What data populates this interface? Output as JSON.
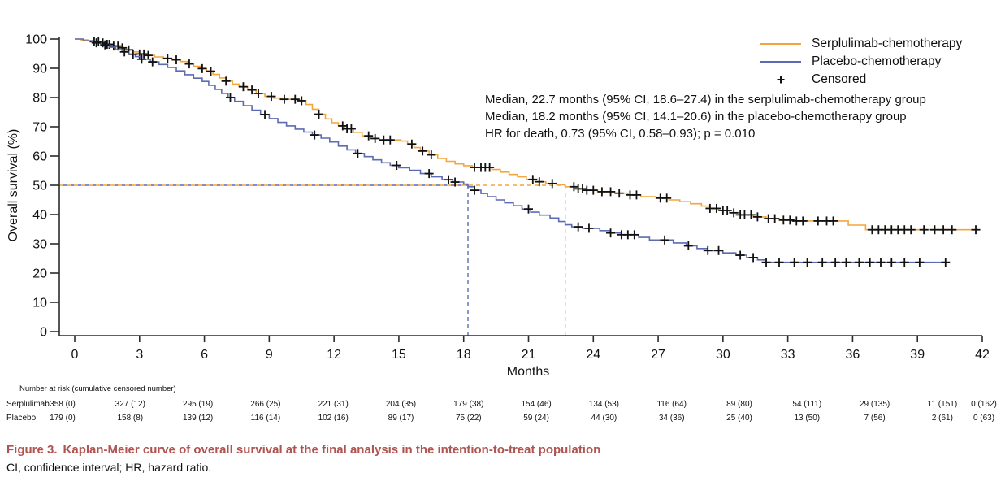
{
  "legend": {
    "items": [
      {
        "label": "Serplulimab-chemotherapy",
        "color": "#F2A63F",
        "type": "line"
      },
      {
        "label": "Placebo-chemotherapy",
        "color": "#5C6BB2",
        "type": "line"
      },
      {
        "label": "Censored",
        "symbol": "+",
        "type": "marker"
      }
    ]
  },
  "annotation": {
    "lines": [
      "Median, 22.7 months (95% CI, 18.6–27.4) in the serplulimab-chemotherapy group",
      "Median, 18.2 months (95% CI, 14.1–20.6) in the placebo-chemotherapy group",
      "HR for death, 0.73 (95% CI, 0.58–0.93); p = 0.010"
    ]
  },
  "caption": {
    "figure_label": "Figure 3.",
    "title": "Kaplan-Meier curve of overall survival at the final analysis in the intention-to-treat population",
    "title_color": "#B0544F",
    "abbreviations": "CI, confidence interval; HR, hazard ratio."
  },
  "chart_data": {
    "type": "line",
    "subtype": "kaplan-meier-step",
    "xlabel": "Months",
    "ylabel": "Overall survival (%)",
    "xlim": [
      0,
      42
    ],
    "ylim": [
      0,
      100
    ],
    "x_ticks": [
      0,
      3,
      6,
      9,
      12,
      15,
      18,
      21,
      24,
      27,
      30,
      33,
      36,
      39,
      42
    ],
    "y_ticks": [
      0,
      10,
      20,
      30,
      40,
      50,
      60,
      70,
      80,
      90,
      100
    ],
    "grid": false,
    "legend_position": "top-right",
    "median_reference": {
      "survival_pct": 50,
      "serplulimab_months": 22.7,
      "placebo_months": 18.2
    },
    "series": [
      {
        "name": "Serplulimab-chemotherapy",
        "color": "#F2A63F",
        "median_months": 22.7,
        "end_month": 41.8,
        "steps": [
          [
            0,
            100
          ],
          [
            0.3,
            99.7
          ],
          [
            0.6,
            99.4
          ],
          [
            0.9,
            99.1
          ],
          [
            1.2,
            98.7
          ],
          [
            1.5,
            98.2
          ],
          [
            1.8,
            97.6
          ],
          [
            2.1,
            97.0
          ],
          [
            2.4,
            96.3
          ],
          [
            2.7,
            95.6
          ],
          [
            3.0,
            94.9
          ],
          [
            3.3,
            94.4
          ],
          [
            3.7,
            93.9
          ],
          [
            4.1,
            93.4
          ],
          [
            4.5,
            92.9
          ],
          [
            4.9,
            92.3
          ],
          [
            5.2,
            91.5
          ],
          [
            5.5,
            90.7
          ],
          [
            5.8,
            89.9
          ],
          [
            6.1,
            89.0
          ],
          [
            6.4,
            87.9
          ],
          [
            6.7,
            86.7
          ],
          [
            7.0,
            85.6
          ],
          [
            7.3,
            84.6
          ],
          [
            7.6,
            83.7
          ],
          [
            8.0,
            82.6
          ],
          [
            8.4,
            81.4
          ],
          [
            8.8,
            80.4
          ],
          [
            9.2,
            79.8
          ],
          [
            9.6,
            79.4
          ],
          [
            10.4,
            78.9
          ],
          [
            10.7,
            77.6
          ],
          [
            11.0,
            76.0
          ],
          [
            11.3,
            74.3
          ],
          [
            11.6,
            72.7
          ],
          [
            11.9,
            71.4
          ],
          [
            12.2,
            70.3
          ],
          [
            12.5,
            69.3
          ],
          [
            12.9,
            68.1
          ],
          [
            13.3,
            66.9
          ],
          [
            13.7,
            66.0
          ],
          [
            14.1,
            65.5
          ],
          [
            15.1,
            65.1
          ],
          [
            15.4,
            64.1
          ],
          [
            15.7,
            62.9
          ],
          [
            16.0,
            61.7
          ],
          [
            16.4,
            60.4
          ],
          [
            16.8,
            59.2
          ],
          [
            17.2,
            58.2
          ],
          [
            17.6,
            57.3
          ],
          [
            18.0,
            56.7
          ],
          [
            18.4,
            56.1
          ],
          [
            19.3,
            55.4
          ],
          [
            19.7,
            54.5
          ],
          [
            20.1,
            53.7
          ],
          [
            20.5,
            52.9
          ],
          [
            20.9,
            52.0
          ],
          [
            21.3,
            51.2
          ],
          [
            21.8,
            50.6
          ],
          [
            22.3,
            50.2
          ],
          [
            22.7,
            49.5
          ],
          [
            23.2,
            48.8
          ],
          [
            23.6,
            48.3
          ],
          [
            24.2,
            47.8
          ],
          [
            25.0,
            47.3
          ],
          [
            25.6,
            46.7
          ],
          [
            26.2,
            46.1
          ],
          [
            26.9,
            45.6
          ],
          [
            27.5,
            45.0
          ],
          [
            28.0,
            44.4
          ],
          [
            28.5,
            43.7
          ],
          [
            29.0,
            42.9
          ],
          [
            29.4,
            42.1
          ],
          [
            29.8,
            41.4
          ],
          [
            30.3,
            40.6
          ],
          [
            30.8,
            39.9
          ],
          [
            31.4,
            39.2
          ],
          [
            32.0,
            38.6
          ],
          [
            32.6,
            38.1
          ],
          [
            33.2,
            37.8
          ],
          [
            35.8,
            36.4
          ],
          [
            36.6,
            34.8
          ]
        ],
        "censor_months": [
          0.9,
          1.1,
          1.3,
          1.5,
          1.6,
          1.8,
          2.0,
          2.2,
          2.5,
          3.0,
          3.2,
          3.4,
          4.3,
          4.7,
          5.3,
          5.9,
          6.3,
          7.0,
          7.8,
          8.2,
          8.5,
          9.1,
          9.7,
          10.2,
          10.5,
          11.3,
          12.4,
          12.6,
          12.8,
          13.6,
          13.9,
          14.3,
          14.6,
          15.6,
          16.1,
          16.5,
          18.5,
          18.8,
          19.0,
          19.2,
          21.2,
          21.5,
          22.1,
          23.1,
          23.3,
          23.5,
          23.7,
          24.0,
          24.4,
          24.8,
          25.2,
          25.7,
          26.0,
          27.1,
          27.4,
          29.4,
          29.7,
          30.0,
          30.2,
          30.5,
          30.8,
          31.0,
          31.3,
          31.6,
          32.1,
          32.4,
          32.8,
          33.1,
          33.4,
          33.7,
          34.4,
          34.8,
          35.1,
          36.9,
          37.2,
          37.5,
          37.8,
          38.1,
          38.4,
          38.7,
          39.3,
          39.8,
          40.2,
          40.6,
          41.7
        ]
      },
      {
        "name": "Placebo-chemotherapy",
        "color": "#5C6BB2",
        "median_months": 18.2,
        "end_month": 40.3,
        "steps": [
          [
            0,
            100
          ],
          [
            0.4,
            99.4
          ],
          [
            0.8,
            98.7
          ],
          [
            1.2,
            98.0
          ],
          [
            1.6,
            97.2
          ],
          [
            1.9,
            96.4
          ],
          [
            2.2,
            95.6
          ],
          [
            2.5,
            94.8
          ],
          [
            2.8,
            94.0
          ],
          [
            3.1,
            93.1
          ],
          [
            3.5,
            92.2
          ],
          [
            3.9,
            91.3
          ],
          [
            4.3,
            90.3
          ],
          [
            4.7,
            89.1
          ],
          [
            5.1,
            87.8
          ],
          [
            5.5,
            86.6
          ],
          [
            5.9,
            85.5
          ],
          [
            6.2,
            84.2
          ],
          [
            6.5,
            82.8
          ],
          [
            6.8,
            81.4
          ],
          [
            7.1,
            80.0
          ],
          [
            7.4,
            78.7
          ],
          [
            7.8,
            77.2
          ],
          [
            8.2,
            75.7
          ],
          [
            8.6,
            74.2
          ],
          [
            9.0,
            72.8
          ],
          [
            9.4,
            71.5
          ],
          [
            9.8,
            70.3
          ],
          [
            10.2,
            69.2
          ],
          [
            10.6,
            68.2
          ],
          [
            11.0,
            67.2
          ],
          [
            11.4,
            66.1
          ],
          [
            11.8,
            64.8
          ],
          [
            12.2,
            63.4
          ],
          [
            12.6,
            62.1
          ],
          [
            13.0,
            60.9
          ],
          [
            13.4,
            59.8
          ],
          [
            13.8,
            58.7
          ],
          [
            14.2,
            57.7
          ],
          [
            14.6,
            56.8
          ],
          [
            15.0,
            56.0
          ],
          [
            15.5,
            55.1
          ],
          [
            16.0,
            54.0
          ],
          [
            16.5,
            52.9
          ],
          [
            17.0,
            51.9
          ],
          [
            17.5,
            51.1
          ],
          [
            18.0,
            50.4
          ],
          [
            18.2,
            49.5
          ],
          [
            18.5,
            48.3
          ],
          [
            18.8,
            47.2
          ],
          [
            19.1,
            46.1
          ],
          [
            19.5,
            45.0
          ],
          [
            19.9,
            44.0
          ],
          [
            20.3,
            43.0
          ],
          [
            20.7,
            41.9
          ],
          [
            21.1,
            40.8
          ],
          [
            21.5,
            39.8
          ],
          [
            22.0,
            38.8
          ],
          [
            22.4,
            37.6
          ],
          [
            22.7,
            36.5
          ],
          [
            23.0,
            35.8
          ],
          [
            23.5,
            35.3
          ],
          [
            24.3,
            34.5
          ],
          [
            24.8,
            33.7
          ],
          [
            25.3,
            33.1
          ],
          [
            26.1,
            32.2
          ],
          [
            26.6,
            31.3
          ],
          [
            27.7,
            30.3
          ],
          [
            28.3,
            29.3
          ],
          [
            28.8,
            28.4
          ],
          [
            29.3,
            27.7
          ],
          [
            30.0,
            26.9
          ],
          [
            30.6,
            26.1
          ],
          [
            31.1,
            25.3
          ],
          [
            31.6,
            24.5
          ],
          [
            32.0,
            23.7
          ]
        ],
        "censor_months": [
          1.0,
          1.4,
          2.3,
          2.7,
          3.1,
          3.6,
          7.2,
          8.8,
          11.1,
          13.1,
          14.9,
          16.4,
          17.3,
          17.6,
          18.5,
          21.0,
          23.3,
          23.8,
          24.8,
          25.3,
          25.6,
          25.9,
          27.3,
          28.4,
          29.3,
          29.8,
          30.8,
          31.4,
          32.0,
          32.6,
          33.3,
          33.9,
          34.6,
          35.2,
          35.7,
          36.3,
          36.8,
          37.3,
          37.8,
          38.4,
          39.1,
          40.3
        ]
      }
    ],
    "number_at_risk": {
      "header": "Number at risk (cumulative censored number)",
      "time_points": [
        0,
        3,
        6,
        9,
        12,
        15,
        18,
        21,
        24,
        27,
        30,
        33,
        36,
        39,
        42
      ],
      "rows": [
        {
          "label": "Serplulimab",
          "values": [
            "358 (0)",
            "327 (12)",
            "295 (19)",
            "266 (25)",
            "221 (31)",
            "204 (35)",
            "179 (38)",
            "154 (46)",
            "134 (53)",
            "116 (64)",
            "89 (80)",
            "54 (111)",
            "29 (135)",
            "11 (151)",
            "0 (162)"
          ]
        },
        {
          "label": "Placebo",
          "values": [
            "179 (0)",
            "158 (8)",
            "139 (12)",
            "116 (14)",
            "102 (16)",
            "89 (17)",
            "75 (22)",
            "59 (24)",
            "44 (30)",
            "34 (36)",
            "25 (40)",
            "13 (50)",
            "7 (56)",
            "2 (61)",
            "0 (63)"
          ]
        }
      ]
    }
  }
}
